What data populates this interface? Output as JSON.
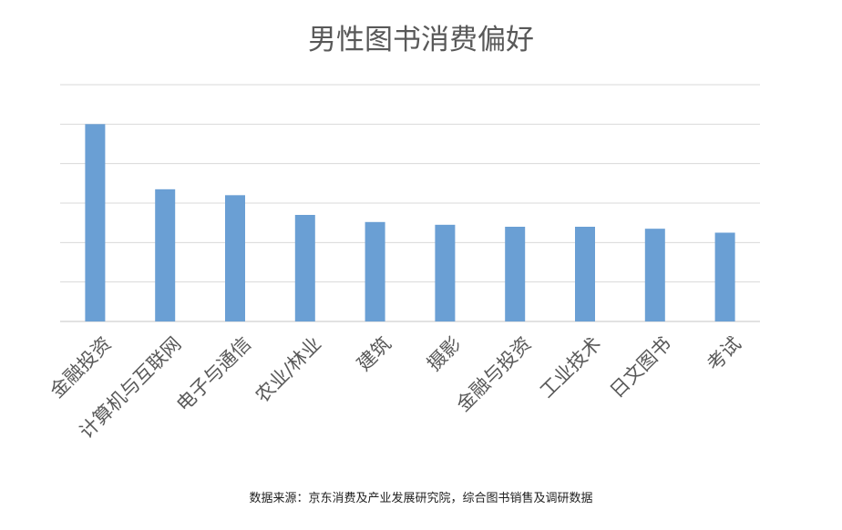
{
  "chart_data": {
    "type": "bar",
    "title": "男性图书消费偏好",
    "source": "数据来源：京东消费及产业发展研究院，综合图书销售及调研数据",
    "categories": [
      "金融投资",
      "计算机与互联网",
      "电子与通信",
      "农业/林业",
      "建筑",
      "摄影",
      "金融与投资",
      "工业技术",
      "日文图书",
      "考试"
    ],
    "values": [
      5.0,
      3.35,
      3.2,
      2.7,
      2.52,
      2.45,
      2.4,
      2.4,
      2.35,
      2.25
    ],
    "ylim": [
      0,
      6
    ],
    "gridlines": 6,
    "grid": true,
    "show_y_tick_labels": false,
    "legend": "none",
    "bar_color": "#6a9fd4",
    "grid_color": "#d9d9d9",
    "axis_label_color": "#595959"
  }
}
